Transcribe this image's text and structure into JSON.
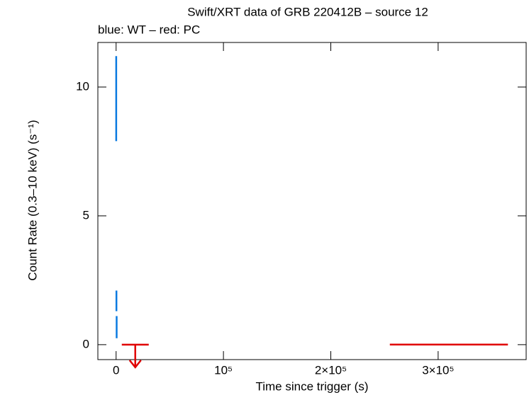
{
  "chart_data": {
    "type": "errorbar",
    "title": "Swift/XRT data of GRB 220412B – source 12",
    "subtitle": "blue: WT – red: PC",
    "x_label": "Time since trigger (s)",
    "y_label": "Count Rate (0.3–10 keV) (s⁻¹)",
    "xlim": [
      -17000,
      382000
    ],
    "ylim": [
      -0.58,
      11.73
    ],
    "xticks": [
      0,
      {
        "value": 100000,
        "label": "10⁵"
      },
      {
        "value": 200000,
        "label": "2×10⁵"
      },
      {
        "value": 300000,
        "label": "3×10⁵"
      }
    ],
    "yticks": [
      0,
      5,
      10
    ],
    "series": [
      {
        "color": "#0a7ae0",
        "x": [
          100,
          300,
          500
        ],
        "xerr": [
          50,
          50,
          50
        ],
        "values": [
          9.55,
          1.7,
          0.68
        ],
        "yerr": [
          1.65,
          0.4,
          0.43
        ],
        "upper_limit": [
          false,
          false,
          false
        ]
      },
      {
        "color": "#e00000",
        "x": [
          17850,
          310000
        ],
        "xerr": [
          12550,
          55000
        ],
        "values": [
          0,
          0.003
        ],
        "yerr": [
          0,
          0
        ],
        "upper_limit": [
          true,
          false
        ]
      }
    ]
  }
}
